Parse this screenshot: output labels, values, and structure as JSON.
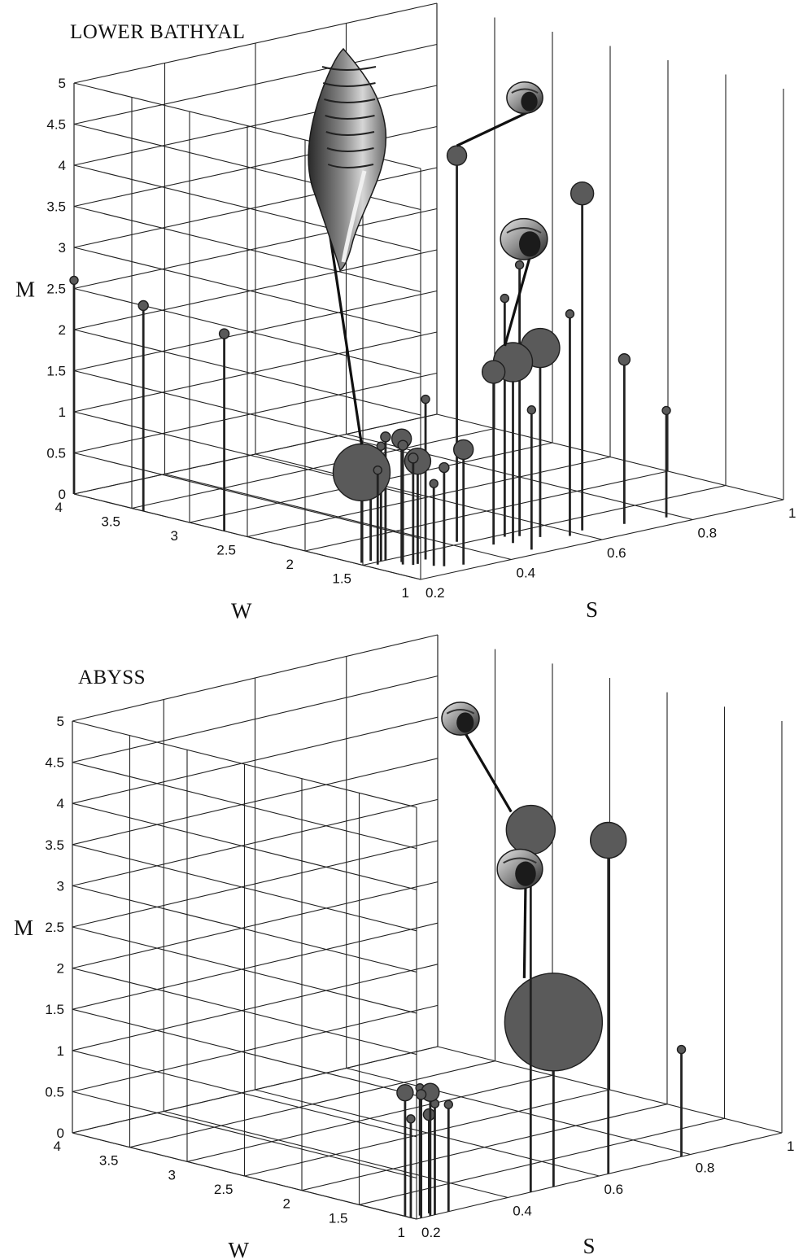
{
  "chart_data": [
    {
      "type": "scatter",
      "title": "LOWER BATHYAL",
      "xlabel": "S",
      "ylabel": "W",
      "zlabel": "M",
      "xlim": [
        0.2,
        1
      ],
      "ylim": [
        1,
        4
      ],
      "zlim": [
        0,
        5
      ],
      "x_ticks": [
        "0.2",
        "0.4",
        "0.6",
        "0.8",
        "1"
      ],
      "y_ticks": [
        "1",
        "1.5",
        "2",
        "2.5",
        "3",
        "3.5",
        "4"
      ],
      "z_ticks": [
        "0",
        "0.5",
        "1",
        "1.5",
        "2",
        "2.5",
        "3",
        "3.5",
        "4",
        "4.5",
        "5"
      ],
      "grid": true,
      "points": [
        {
          "s": 0.2,
          "w": 4.0,
          "m": 2.6,
          "size": 4
        },
        {
          "s": 0.2,
          "w": 3.4,
          "m": 2.5,
          "size": 6
        },
        {
          "s": 0.2,
          "w": 2.7,
          "m": 2.4,
          "size": 6
        },
        {
          "s": 0.21,
          "w": 1.55,
          "m": 1.1,
          "size": 35
        },
        {
          "s": 0.22,
          "w": 1.45,
          "m": 1.15,
          "size": 5
        },
        {
          "s": 0.23,
          "w": 1.55,
          "m": 1.3,
          "size": 5
        },
        {
          "s": 0.24,
          "w": 1.5,
          "m": 1.4,
          "size": 5
        },
        {
          "s": 0.25,
          "w": 1.5,
          "m": 1.5,
          "size": 6
        },
        {
          "s": 0.26,
          "w": 1.4,
          "m": 1.5,
          "size": 12
        },
        {
          "s": 0.25,
          "w": 1.35,
          "m": 1.45,
          "size": 6
        },
        {
          "s": 0.26,
          "w": 1.3,
          "m": 1.3,
          "size": 6
        },
        {
          "s": 0.27,
          "w": 1.3,
          "m": 1.25,
          "size": 16
        },
        {
          "s": 0.28,
          "w": 1.2,
          "m": 1.0,
          "size": 4
        },
        {
          "s": 0.29,
          "w": 1.15,
          "m": 1.2,
          "size": 6
        },
        {
          "s": 0.3,
          "w": 1.35,
          "m": 1.95,
          "size": 5
        },
        {
          "s": 0.32,
          "w": 1.1,
          "m": 1.4,
          "size": 12
        },
        {
          "s": 0.42,
          "w": 1.55,
          "m": 4.7,
          "size": 12
        },
        {
          "s": 0.45,
          "w": 1.35,
          "m": 2.1,
          "size": 14
        },
        {
          "s": 0.47,
          "w": 1.1,
          "m": 1.7,
          "size": 5
        },
        {
          "s": 0.48,
          "w": 1.3,
          "m": 2.2,
          "size": 24
        },
        {
          "s": 0.5,
          "w": 1.45,
          "m": 2.9,
          "size": 5
        },
        {
          "s": 0.52,
          "w": 1.4,
          "m": 3.3,
          "size": 5
        },
        {
          "s": 0.54,
          "w": 1.3,
          "m": 2.3,
          "size": 24
        },
        {
          "s": 0.58,
          "w": 1.2,
          "m": 2.7,
          "size": 5
        },
        {
          "s": 0.62,
          "w": 1.25,
          "m": 4.1,
          "size": 14
        },
        {
          "s": 0.7,
          "w": 1.2,
          "m": 2.0,
          "size": 7
        },
        {
          "s": 0.78,
          "w": 1.15,
          "m": 1.3,
          "size": 5
        }
      ]
    },
    {
      "type": "scatter",
      "title": "ABYSS",
      "xlabel": "S",
      "ylabel": "W",
      "zlabel": "M",
      "xlim": [
        0.2,
        1
      ],
      "ylim": [
        1,
        4
      ],
      "zlim": [
        0,
        5
      ],
      "x_ticks": [
        "0.2",
        "0.4",
        "0.6",
        "0.8",
        "1"
      ],
      "y_ticks": [
        "1",
        "1.5",
        "2",
        "2.5",
        "3",
        "3.5",
        "4"
      ],
      "z_ticks": [
        "0",
        "0.5",
        "1",
        "1.5",
        "2",
        "2.5",
        "3",
        "3.5",
        "4",
        "4.5",
        "5"
      ],
      "grid": true,
      "points": [
        {
          "s": 0.2,
          "w": 1.05,
          "m": 1.2,
          "size": 5
        },
        {
          "s": 0.2,
          "w": 1.1,
          "m": 1.5,
          "size": 10
        },
        {
          "s": 0.21,
          "w": 1.0,
          "m": 1.5,
          "size": 6
        },
        {
          "s": 0.22,
          "w": 1.05,
          "m": 1.55,
          "size": 5
        },
        {
          "s": 0.23,
          "w": 1.0,
          "m": 1.5,
          "size": 11
        },
        {
          "s": 0.24,
          "w": 1.0,
          "m": 1.35,
          "size": 5
        },
        {
          "s": 0.24,
          "w": 1.05,
          "m": 1.2,
          "size": 7
        },
        {
          "s": 0.27,
          "w": 1.0,
          "m": 1.3,
          "size": 5
        },
        {
          "s": 0.45,
          "w": 1.0,
          "m": 4.4,
          "size": 30
        },
        {
          "s": 0.5,
          "w": 1.0,
          "m": 2.0,
          "size": 60
        },
        {
          "s": 0.62,
          "w": 1.0,
          "m": 4.05,
          "size": 22
        },
        {
          "s": 0.78,
          "w": 1.0,
          "m": 1.3,
          "size": 5
        }
      ]
    }
  ],
  "shell_icons": [
    "fusiform-shell-icon",
    "snail-shell-icon",
    "snail-shell-icon"
  ]
}
